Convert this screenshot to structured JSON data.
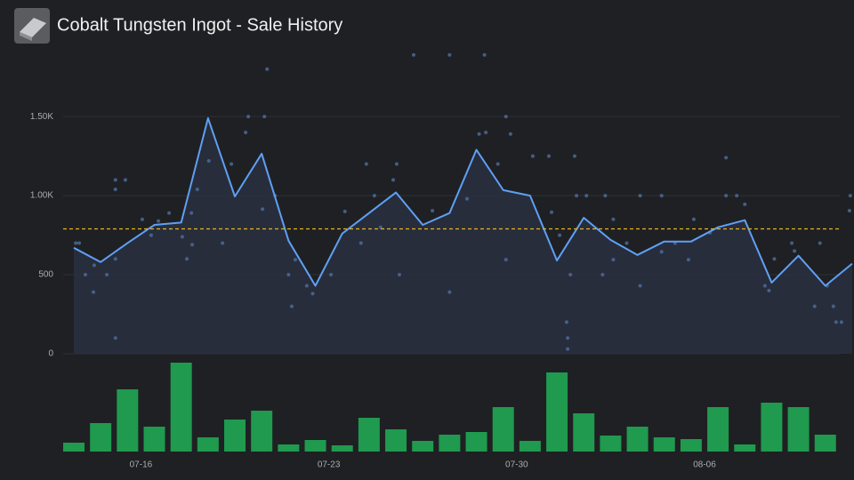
{
  "chart_data": [
    {
      "type": "line",
      "title": "Cobalt Tungsten Ingot - Sale History",
      "categories": [
        null,
        null,
        "07-16",
        null,
        null,
        null,
        null,
        null,
        null,
        "07-23",
        null,
        null,
        null,
        null,
        null,
        null,
        "07-30",
        null,
        null,
        null,
        null,
        null,
        null,
        "08-06",
        null,
        null,
        null,
        null,
        null,
        null
      ],
      "ylim": [
        0,
        1900
      ],
      "yticks": [
        0,
        500,
        {
          "value": 1000,
          "label": "1.00K"
        },
        {
          "value": 1500,
          "label": "1.50K"
        }
      ],
      "grid": true,
      "series": [
        {
          "color": "#5ea0f5",
          "values": [
            670,
            580,
            700,
            815,
            830,
            1490,
            995,
            1265,
            715,
            430,
            760,
            890,
            1020,
            815,
            890,
            1290,
            1035,
            1000,
            590,
            860,
            720,
            625,
            710,
            710,
            800,
            845,
            450,
            620,
            430,
            570
          ]
        }
      ],
      "points": {
        "color": "#4b6a98",
        "x": [
          0.07,
          0.2,
          0.43,
          0.73,
          0.76,
          1.23,
          1.55,
          1.55,
          1.55,
          1.55,
          1.92,
          2.55,
          2.88,
          3.15,
          3.55,
          4.04,
          4.38,
          4.41,
          4.21,
          4.6,
          5.03,
          5.54,
          5.87,
          6.4,
          6.5,
          7.1,
          7.2,
          7.03,
          7.5,
          8.0,
          8.12,
          8.25,
          8.68,
          8.9,
          9.58,
          10.1,
          10.9,
          10.7,
          11.2,
          11.43,
          12.03,
          12.13,
          11.9,
          12.66,
          14.0,
          15.3,
          13.36,
          14.0,
          14.65,
          15.1,
          15.35,
          15.8,
          16.1,
          16.1,
          16.27,
          17.1,
          17.7,
          17.8,
          18.1,
          18.36,
          18.4,
          18.4,
          18.5,
          18.66,
          18.73,
          19.1,
          19.8,
          19.7,
          20.1,
          20.1,
          20.6,
          21.1,
          21.1,
          21.9,
          21.9,
          22.4,
          22.9,
          23.1,
          23.7,
          24.3,
          24.3,
          24.7,
          25.0,
          25.75,
          25.9,
          26.1,
          26.75,
          26.85,
          27.6,
          27.8,
          28.07,
          28.3,
          28.4,
          28.6,
          28.9,
          28.93
        ],
        "values": [
          700,
          700,
          500,
          390,
          560,
          500,
          1040,
          1100,
          100,
          600,
          1100,
          850,
          750,
          840,
          890,
          740,
          890,
          690,
          600,
          1040,
          1220,
          700,
          1200,
          1400,
          1500,
          1500,
          1800,
          915,
          1000,
          500,
          300,
          595,
          430,
          380,
          500,
          900,
          1200,
          700,
          1000,
          800,
          1200,
          500,
          1100,
          1890,
          1890,
          1890,
          905,
          390,
          980,
          1390,
          1400,
          1200,
          595,
          1500,
          1390,
          1250,
          1250,
          895,
          750,
          200,
          100,
          30,
          500,
          1250,
          1000,
          1000,
          1000,
          500,
          850,
          595,
          700,
          1000,
          430,
          1000,
          645,
          700,
          595,
          850,
          765,
          1240,
          1000,
          1000,
          945,
          430,
          400,
          600,
          700,
          650,
          300,
          700,
          430,
          300,
          200,
          200,
          905,
          1000
        ]
      },
      "average": {
        "value": 790,
        "color": "#e6b422"
      }
    },
    {
      "type": "bar",
      "color": "#1f9a4e",
      "values": [
        10,
        32,
        70,
        28,
        100,
        16,
        36,
        46,
        8,
        13,
        7,
        38,
        25,
        12,
        19,
        22,
        50,
        12,
        89,
        43,
        18,
        28,
        16,
        14,
        50,
        8,
        55,
        50,
        19,
        null
      ]
    }
  ]
}
